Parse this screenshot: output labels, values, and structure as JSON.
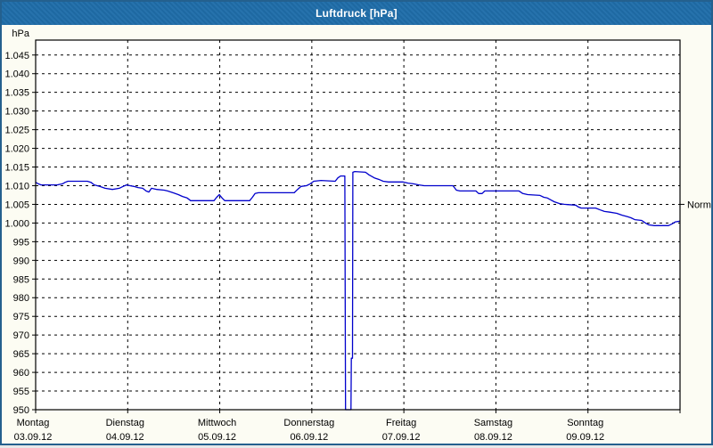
{
  "window": {
    "title": "Luftdruck [hPa]"
  },
  "colors": {
    "titlebar": "#1f6da9",
    "titlebar_text": "#ffffff",
    "window_border": "#24608e",
    "content_bg": "#fcfcf3",
    "plot_bg": "#ffffff",
    "grid": "#000000",
    "axis": "#000000",
    "text": "#000000",
    "line": "#0000cc"
  },
  "chart_data": {
    "type": "line",
    "title": "Luftdruck [hPa]",
    "grid": "dashed",
    "legend_position": "none",
    "y_axis": {
      "unit": "hPa",
      "ylim": [
        950,
        1049
      ],
      "ticks": [
        {
          "value": 1045,
          "label": "1.045"
        },
        {
          "value": 1040,
          "label": "1.040"
        },
        {
          "value": 1035,
          "label": "1.035"
        },
        {
          "value": 1030,
          "label": "1.030"
        },
        {
          "value": 1025,
          "label": "1.025"
        },
        {
          "value": 1020,
          "label": "1.020"
        },
        {
          "value": 1015,
          "label": "1.015"
        },
        {
          "value": 1010,
          "label": "1.010"
        },
        {
          "value": 1005,
          "label": "1.005"
        },
        {
          "value": 1000,
          "label": "1.000"
        },
        {
          "value": 995,
          "label": "995"
        },
        {
          "value": 990,
          "label": "990"
        },
        {
          "value": 985,
          "label": "985"
        },
        {
          "value": 980,
          "label": "980"
        },
        {
          "value": 975,
          "label": "975"
        },
        {
          "value": 970,
          "label": "970"
        },
        {
          "value": 965,
          "label": "965"
        },
        {
          "value": 960,
          "label": "960"
        },
        {
          "value": 955,
          "label": "955"
        },
        {
          "value": 950,
          "label": "950"
        }
      ]
    },
    "x_axis": {
      "hours_total": 168,
      "hours_per_day": 24,
      "days": [
        {
          "name": "Montag",
          "date": "03.09.12"
        },
        {
          "name": "Dienstag",
          "date": "04.09.12"
        },
        {
          "name": "Mittwoch",
          "date": "05.09.12"
        },
        {
          "name": "Donnerstag",
          "date": "06.09.12"
        },
        {
          "name": "Freitag",
          "date": "07.09.12"
        },
        {
          "name": "Samstag",
          "date": "08.09.12"
        },
        {
          "name": "Sonntag",
          "date": "09.09.12"
        }
      ]
    },
    "annotations": {
      "normal_label": "Normal",
      "normal_value": 1005
    },
    "series": [
      {
        "name": "Luftdruck",
        "color": "#0000cc",
        "points": [
          [
            0,
            1010.9
          ],
          [
            0.7,
            1010.5
          ],
          [
            1.4,
            1010.2
          ],
          [
            5.6,
            1010.2
          ],
          [
            7,
            1010.5
          ],
          [
            7.7,
            1010.9
          ],
          [
            8.4,
            1011.2
          ],
          [
            13.5,
            1011.2
          ],
          [
            14.4,
            1010.9
          ],
          [
            15.3,
            1010.2
          ],
          [
            16.7,
            1009.8
          ],
          [
            18.1,
            1009.3
          ],
          [
            20,
            1009.0
          ],
          [
            21.8,
            1009.3
          ],
          [
            22.8,
            1009.8
          ],
          [
            23.7,
            1010.2
          ],
          [
            24.6,
            1010.0
          ],
          [
            25.6,
            1009.8
          ],
          [
            26.7,
            1009.5
          ],
          [
            27.9,
            1009.3
          ],
          [
            28.8,
            1008.6
          ],
          [
            29.5,
            1008.3
          ],
          [
            30.2,
            1009.3
          ],
          [
            31.6,
            1009.0
          ],
          [
            33.5,
            1008.8
          ],
          [
            34.4,
            1008.6
          ],
          [
            35.8,
            1008.1
          ],
          [
            37.2,
            1007.6
          ],
          [
            38.3,
            1007.1
          ],
          [
            39.5,
            1006.7
          ],
          [
            40.4,
            1006.0
          ],
          [
            46.5,
            1006.0
          ],
          [
            47.2,
            1006.9
          ],
          [
            47.9,
            1007.6
          ],
          [
            48.6,
            1006.7
          ],
          [
            49.3,
            1006.0
          ],
          [
            55.8,
            1006.0
          ],
          [
            56.5,
            1006.9
          ],
          [
            57.2,
            1007.9
          ],
          [
            58.1,
            1008.1
          ],
          [
            62.8,
            1008.1
          ],
          [
            67.4,
            1008.1
          ],
          [
            68.3,
            1009.0
          ],
          [
            69.2,
            1009.8
          ],
          [
            70.6,
            1010.0
          ],
          [
            71.6,
            1010.5
          ],
          [
            72.5,
            1011.2
          ],
          [
            74.4,
            1011.4
          ],
          [
            78.1,
            1011.2
          ],
          [
            78.8,
            1012.1
          ],
          [
            79.5,
            1012.6
          ],
          [
            80.6,
            1012.6
          ],
          [
            80.8,
            950
          ],
          [
            82.2,
            950
          ],
          [
            82.3,
            963.8
          ],
          [
            82.6,
            963.8
          ],
          [
            82.7,
            1013.6
          ],
          [
            83.2,
            1013.8
          ],
          [
            86,
            1013.6
          ],
          [
            86.9,
            1012.9
          ],
          [
            88.3,
            1012.1
          ],
          [
            89.7,
            1011.6
          ],
          [
            90.6,
            1011.2
          ],
          [
            92,
            1011.0
          ],
          [
            95.7,
            1011.0
          ],
          [
            97.1,
            1010.7
          ],
          [
            98.5,
            1010.5
          ],
          [
            99.9,
            1010.2
          ],
          [
            101.3,
            1010.0
          ],
          [
            108.8,
            1010.0
          ],
          [
            109.7,
            1008.8
          ],
          [
            110.6,
            1008.6
          ],
          [
            114.8,
            1008.6
          ],
          [
            115.5,
            1007.9
          ],
          [
            116.4,
            1007.9
          ],
          [
            117.1,
            1008.6
          ],
          [
            126,
            1008.6
          ],
          [
            127,
            1007.9
          ],
          [
            128.3,
            1007.6
          ],
          [
            131.5,
            1007.4
          ],
          [
            132.5,
            1006.9
          ],
          [
            133.4,
            1006.7
          ],
          [
            134.3,
            1006.2
          ],
          [
            135.2,
            1005.7
          ],
          [
            136.6,
            1005.2
          ],
          [
            137.8,
            1005.0
          ],
          [
            140.8,
            1004.8
          ],
          [
            141.5,
            1004.3
          ],
          [
            142.2,
            1004.0
          ],
          [
            146,
            1004.0
          ],
          [
            147.2,
            1003.5
          ],
          [
            148.3,
            1003.1
          ],
          [
            149.7,
            1002.9
          ],
          [
            151.5,
            1002.6
          ],
          [
            152.9,
            1002.1
          ],
          [
            154.3,
            1001.7
          ],
          [
            155.2,
            1001.4
          ],
          [
            156.2,
            1000.9
          ],
          [
            158,
            1000.7
          ],
          [
            159,
            1000.0
          ],
          [
            159.9,
            999.5
          ],
          [
            161.3,
            999.3
          ],
          [
            165,
            999.3
          ],
          [
            166,
            999.8
          ],
          [
            166.8,
            1000.3
          ],
          [
            168,
            1000.5
          ]
        ]
      }
    ]
  }
}
